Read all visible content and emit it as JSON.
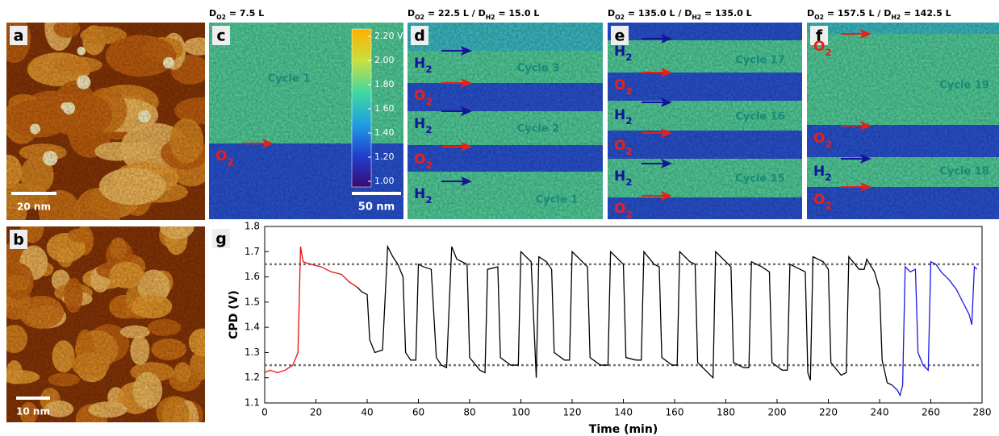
{
  "panels": [
    {
      "label": "a",
      "scale_bar": "20 nm"
    },
    {
      "label": "b",
      "scale_bar": "10 nm"
    },
    {
      "label": "c",
      "header": [
        "D",
        "O2",
        " = 7.5 L"
      ],
      "gases": [
        {
          "parts": [
            "O",
            "2"
          ],
          "color": "#e8201a"
        }
      ],
      "cycles": [
        "Cycle 1"
      ],
      "colorbar": [
        "2.20 V",
        "2.00",
        "1.80",
        "1.60",
        "1.40",
        "1.20",
        "1.00"
      ],
      "scale_bar": "50 nm"
    },
    {
      "label": "d",
      "header": [
        "D",
        "O2",
        " = 22.5 L / D",
        "H2",
        " = 15.0 L"
      ],
      "gases": [
        {
          "parts": [
            "H",
            "2"
          ],
          "color": "#14149a"
        },
        {
          "parts": [
            "O",
            "2"
          ],
          "color": "#e8201a"
        },
        {
          "parts": [
            "H",
            "2"
          ],
          "color": "#14149a"
        },
        {
          "parts": [
            "O",
            "2"
          ],
          "color": "#e8201a"
        },
        {
          "parts": [
            "H",
            "2"
          ],
          "color": "#14149a"
        }
      ],
      "cycles": [
        "Cycle 3",
        "Cycle 2",
        "Cycle 1"
      ]
    },
    {
      "label": "e",
      "header": [
        "D",
        "O2",
        " = 135.0 L / D",
        "H2",
        " = 135.0 L"
      ],
      "gases": [
        {
          "parts": [
            "H",
            "2"
          ],
          "color": "#14149a"
        },
        {
          "parts": [
            "O",
            "2"
          ],
          "color": "#e8201a"
        },
        {
          "parts": [
            "H",
            "2"
          ],
          "color": "#14149a"
        },
        {
          "parts": [
            "O",
            "2"
          ],
          "color": "#e8201a"
        },
        {
          "parts": [
            "H",
            "2"
          ],
          "color": "#14149a"
        },
        {
          "parts": [
            "O",
            "2"
          ],
          "color": "#e8201a"
        }
      ],
      "cycles": [
        "Cycle 17",
        "Cycle 16",
        "Cycle 15"
      ]
    },
    {
      "label": "f",
      "header": [
        "D",
        "O2",
        " = 157.5 L / D",
        "H2",
        " = 142.5 L"
      ],
      "gases": [
        {
          "parts": [
            "O",
            "2"
          ],
          "color": "#e8201a"
        },
        {
          "parts": [
            "O",
            "2"
          ],
          "color": "#e8201a"
        },
        {
          "parts": [
            "H",
            "2"
          ],
          "color": "#14149a"
        },
        {
          "parts": [
            "O",
            "2"
          ],
          "color": "#e8201a"
        }
      ],
      "cycles": [
        "Cycle 19",
        "Cycle 18"
      ]
    }
  ],
  "chart_data": {
    "type": "line",
    "panel_label": "g",
    "xlabel": "Time (min)",
    "ylabel": "CPD (V)",
    "xlim": [
      0,
      280
    ],
    "xticks": [
      0,
      20,
      40,
      60,
      80,
      100,
      120,
      140,
      160,
      180,
      200,
      220,
      240,
      260,
      280
    ],
    "ylim": [
      1.1,
      1.8
    ],
    "yticks": [
      1.1,
      1.2,
      1.3,
      1.4,
      1.5,
      1.6,
      1.7,
      1.8
    ],
    "reference_lines": [
      1.65,
      1.25
    ],
    "series": [
      {
        "color": "#e01010",
        "x": [
          0,
          2,
          5,
          8,
          11,
          13,
          14,
          15,
          18,
          22,
          26,
          30,
          33,
          36
        ],
        "values": [
          1.22,
          1.23,
          1.22,
          1.23,
          1.25,
          1.3,
          1.72,
          1.66,
          1.65,
          1.64,
          1.62,
          1.61,
          1.58,
          1.56
        ]
      },
      {
        "color": "#000000",
        "x": [
          36,
          38,
          40,
          41,
          43,
          46,
          48,
          50,
          52,
          54,
          55,
          57,
          59,
          60,
          62,
          65,
          67,
          69,
          71,
          73,
          75,
          79,
          80,
          84,
          86,
          87,
          91,
          92,
          96,
          99,
          100,
          104,
          106,
          107,
          110,
          112,
          113,
          117,
          119,
          120,
          124,
          126,
          127,
          131,
          134,
          135,
          139,
          140,
          141,
          145,
          147,
          148,
          152,
          154,
          155,
          159,
          161,
          162,
          166,
          168,
          169,
          173,
          175,
          176,
          180,
          182,
          183,
          187,
          189,
          190,
          194,
          197,
          198,
          202,
          204,
          205,
          209,
          211,
          212,
          213,
          214,
          218,
          220,
          221,
          225,
          227,
          228,
          232,
          234,
          235,
          238,
          240,
          241,
          243,
          245
        ],
        "values": [
          1.56,
          1.54,
          1.53,
          1.35,
          1.3,
          1.31,
          1.72,
          1.68,
          1.65,
          1.6,
          1.3,
          1.27,
          1.27,
          1.65,
          1.64,
          1.63,
          1.28,
          1.25,
          1.24,
          1.72,
          1.67,
          1.65,
          1.28,
          1.23,
          1.22,
          1.63,
          1.64,
          1.28,
          1.25,
          1.25,
          1.7,
          1.66,
          1.2,
          1.68,
          1.66,
          1.63,
          1.3,
          1.27,
          1.27,
          1.7,
          1.66,
          1.64,
          1.28,
          1.25,
          1.25,
          1.7,
          1.66,
          1.65,
          1.28,
          1.27,
          1.27,
          1.7,
          1.65,
          1.64,
          1.28,
          1.25,
          1.25,
          1.7,
          1.66,
          1.65,
          1.26,
          1.22,
          1.2,
          1.7,
          1.66,
          1.64,
          1.26,
          1.24,
          1.24,
          1.66,
          1.64,
          1.62,
          1.26,
          1.23,
          1.23,
          1.65,
          1.63,
          1.62,
          1.22,
          1.19,
          1.68,
          1.66,
          1.63,
          1.26,
          1.21,
          1.22,
          1.68,
          1.63,
          1.63,
          1.67,
          1.62,
          1.55,
          1.27,
          1.18,
          1.17
        ]
      },
      {
        "color": "#1a1ae0",
        "x": [
          245,
          247,
          248,
          249,
          250,
          252,
          254,
          255,
          257,
          259,
          260,
          262,
          264,
          267,
          270,
          273,
          275,
          276,
          277,
          278
        ],
        "values": [
          1.17,
          1.15,
          1.13,
          1.17,
          1.64,
          1.62,
          1.63,
          1.3,
          1.25,
          1.23,
          1.66,
          1.65,
          1.62,
          1.59,
          1.55,
          1.49,
          1.45,
          1.41,
          1.64,
          1.63
        ]
      }
    ]
  }
}
